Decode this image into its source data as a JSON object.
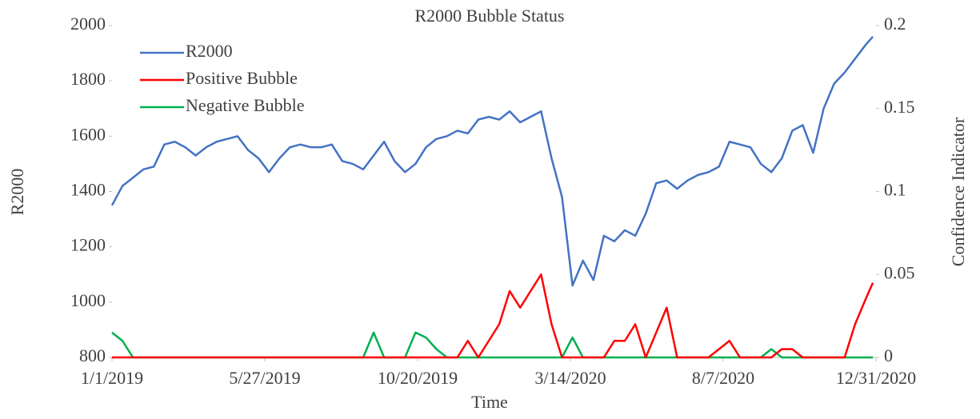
{
  "chart_data": {
    "type": "line",
    "title": "R2000 Bubble Status",
    "x_label": "Time",
    "y_label": "R2000",
    "y2_label": "Confidence Indicator",
    "x": [
      "1/1/2019",
      "1/11/2019",
      "1/21/2019",
      "1/31/2019",
      "2/10/2019",
      "2/20/2019",
      "3/2/2019",
      "3/12/2019",
      "3/22/2019",
      "4/1/2019",
      "4/11/2019",
      "4/21/2019",
      "5/1/2019",
      "5/11/2019",
      "5/21/2019",
      "5/31/2019",
      "6/10/2019",
      "6/20/2019",
      "6/30/2019",
      "7/10/2019",
      "7/20/2019",
      "7/30/2019",
      "8/9/2019",
      "8/19/2019",
      "8/29/2019",
      "9/8/2019",
      "9/18/2019",
      "9/28/2019",
      "10/8/2019",
      "10/18/2019",
      "10/28/2019",
      "11/7/2019",
      "11/17/2019",
      "11/27/2019",
      "12/7/2019",
      "12/17/2019",
      "12/27/2019",
      "1/6/2020",
      "1/16/2020",
      "1/26/2020",
      "2/5/2020",
      "2/15/2020",
      "2/25/2020",
      "3/6/2020",
      "3/16/2020",
      "3/26/2020",
      "4/5/2020",
      "4/15/2020",
      "4/25/2020",
      "5/5/2020",
      "5/15/2020",
      "5/25/2020",
      "6/4/2020",
      "6/14/2020",
      "6/24/2020",
      "7/4/2020",
      "7/14/2020",
      "7/24/2020",
      "8/3/2020",
      "8/13/2020",
      "8/23/2020",
      "9/2/2020",
      "9/12/2020",
      "9/22/2020",
      "10/2/2020",
      "10/12/2020",
      "10/22/2020",
      "11/1/2020",
      "11/11/2020",
      "11/21/2020",
      "12/1/2020",
      "12/11/2020",
      "12/21/2020",
      "12/28/2020"
    ],
    "series": [
      {
        "name": "R2000",
        "color": "#4472c4",
        "axis": "y",
        "values": [
          1350,
          1420,
          1450,
          1480,
          1490,
          1570,
          1580,
          1560,
          1530,
          1560,
          1580,
          1590,
          1600,
          1550,
          1520,
          1470,
          1520,
          1560,
          1570,
          1560,
          1560,
          1570,
          1510,
          1500,
          1480,
          1530,
          1580,
          1510,
          1470,
          1500,
          1560,
          1590,
          1600,
          1620,
          1610,
          1660,
          1670,
          1660,
          1690,
          1650,
          1670,
          1690,
          1520,
          1380,
          1060,
          1150,
          1080,
          1240,
          1220,
          1260,
          1240,
          1320,
          1430,
          1440,
          1410,
          1440,
          1460,
          1470,
          1490,
          1580,
          1570,
          1560,
          1500,
          1470,
          1520,
          1620,
          1640,
          1540,
          1700,
          1790,
          1830,
          1880,
          1930,
          1960
        ]
      },
      {
        "name": "Positive Bubble",
        "color": "#ff0000",
        "axis": "y2",
        "values": [
          0,
          0,
          0,
          0,
          0,
          0,
          0,
          0,
          0,
          0,
          0,
          0,
          0,
          0,
          0,
          0,
          0,
          0,
          0,
          0,
          0,
          0,
          0,
          0,
          0,
          0,
          0,
          0,
          0,
          0,
          0,
          0,
          0,
          0,
          0.01,
          0,
          0.01,
          0.02,
          0.04,
          0.03,
          0.04,
          0.05,
          0.02,
          0,
          0,
          0,
          0,
          0,
          0.01,
          0.01,
          0.02,
          0,
          0.015,
          0.03,
          0,
          0,
          0,
          0,
          0.005,
          0.01,
          0,
          0,
          0,
          0,
          0.005,
          0.005,
          0,
          0,
          0,
          0,
          0,
          0.02,
          0.035,
          0.045
        ]
      },
      {
        "name": "Negative Bubble",
        "color": "#00b050",
        "axis": "y2",
        "values": [
          0.015,
          0.01,
          0,
          0,
          0,
          0,
          0,
          0,
          0,
          0,
          0,
          0,
          0,
          0,
          0,
          0,
          0,
          0,
          0,
          0,
          0,
          0,
          0,
          0,
          0,
          0.015,
          0,
          0,
          0,
          0.015,
          0.012,
          0.005,
          0,
          0,
          0,
          0,
          0,
          0,
          0,
          0,
          0,
          0,
          0,
          0,
          0.012,
          0,
          0,
          0,
          0,
          0,
          0,
          0,
          0,
          0,
          0,
          0,
          0,
          0,
          0,
          0,
          0,
          0,
          0,
          0.005,
          0,
          0,
          0,
          0,
          0,
          0,
          0,
          0,
          0,
          0
        ]
      }
    ],
    "xlim": [
      "1/1/2019",
      "12/31/2020"
    ],
    "xticks": [
      "1/1/2019",
      "5/27/2019",
      "10/20/2019",
      "3/14/2020",
      "8/7/2020",
      "12/31/2020"
    ],
    "ylim": [
      800,
      2000
    ],
    "yticks": [
      800,
      1000,
      1200,
      1400,
      1600,
      1800,
      2000
    ],
    "y2lim": [
      0,
      0.2
    ],
    "y2ticks": [
      0,
      0.05,
      0.1,
      0.15,
      0.2
    ],
    "legend": "upper left"
  }
}
